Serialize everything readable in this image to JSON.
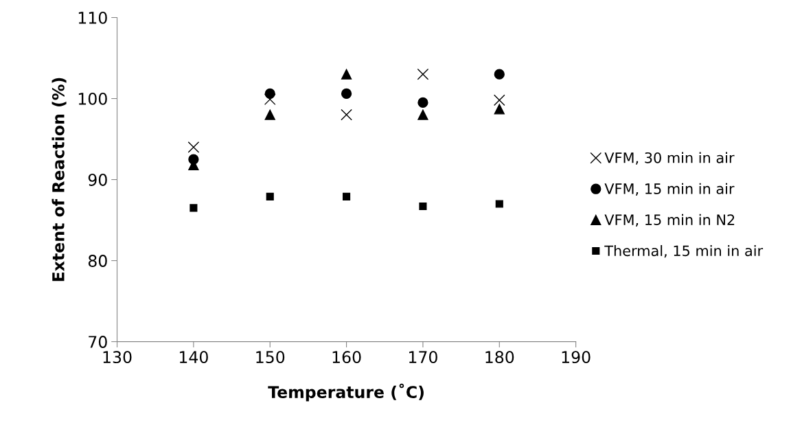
{
  "chart_data": {
    "type": "scatter",
    "xlabel": "Temperature (˚C)",
    "ylabel": "Extent of Reaction (%)",
    "x": [
      140,
      150,
      160,
      170,
      180
    ],
    "series": [
      {
        "name": "VFM, 30 min in air",
        "color": "#000000",
        "marker": "cross",
        "values": [
          94.0,
          99.9,
          98.0,
          103.0,
          99.8
        ]
      },
      {
        "name": "VFM, 15 min in air",
        "color": "#000000",
        "marker": "circle",
        "values": [
          92.5,
          100.6,
          100.6,
          99.5,
          103.0
        ]
      },
      {
        "name": "VFM, 15 min in N2",
        "color": "#000000",
        "marker": "triangle",
        "values": [
          91.8,
          98.0,
          103.0,
          98.0,
          98.7
        ]
      },
      {
        "name": "Thermal, 15 min in air",
        "color": "#000000",
        "marker": "square",
        "values": [
          86.5,
          87.9,
          87.9,
          86.7,
          87.0
        ]
      }
    ],
    "xlim": [
      130,
      190
    ],
    "xticks": [
      130,
      140,
      150,
      160,
      170,
      180,
      190
    ],
    "ylim": [
      70,
      110
    ],
    "yticks": [
      70,
      80,
      90,
      100,
      110
    ],
    "grid": false,
    "legend": "right"
  }
}
